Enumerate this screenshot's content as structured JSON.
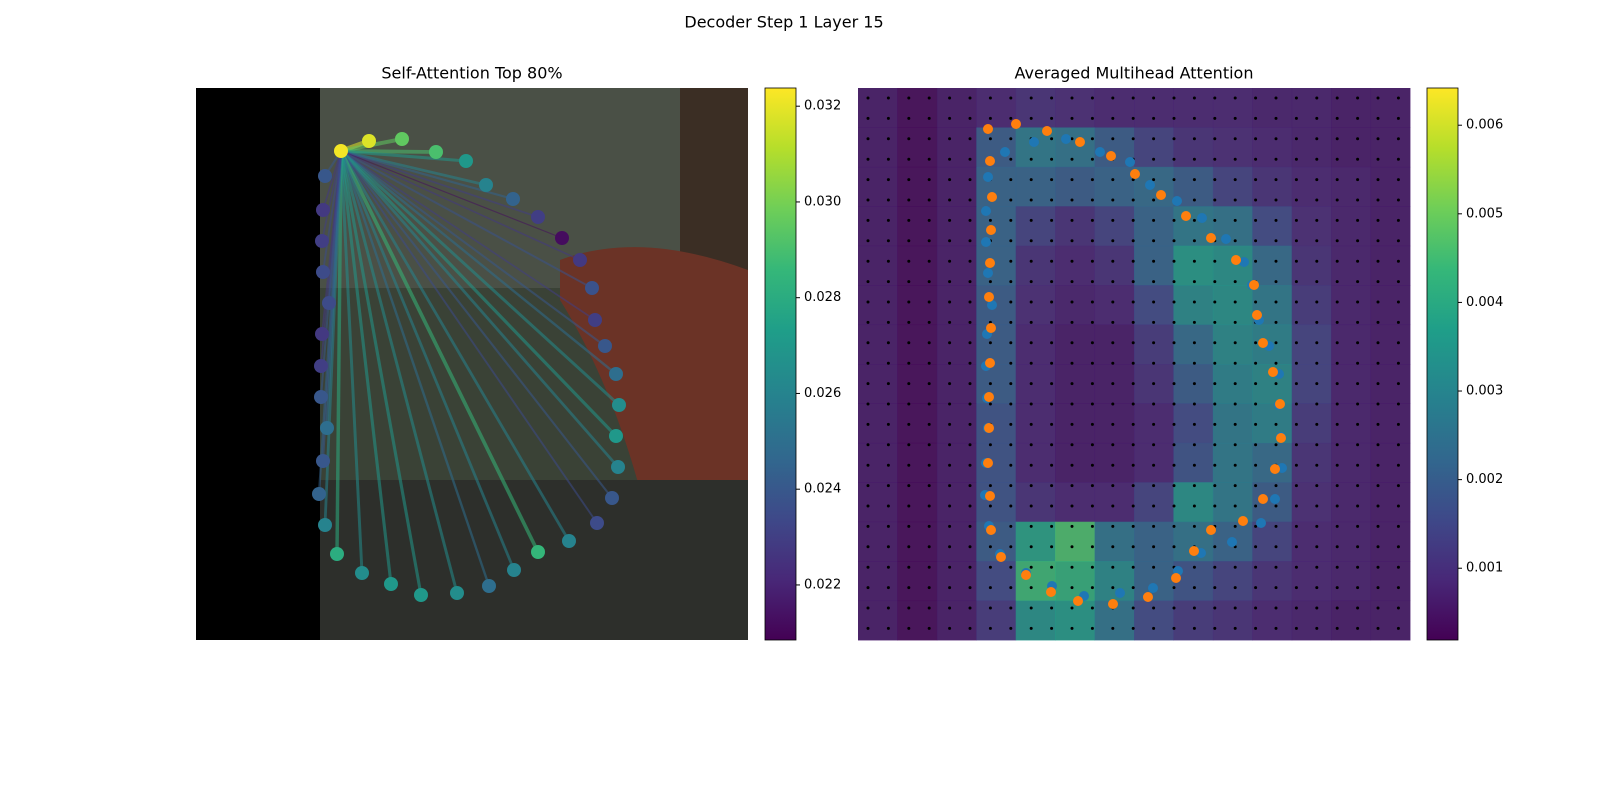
{
  "suptitle": "Decoder Step 1 Layer 15",
  "chart_data": [
    {
      "type": "scatter",
      "title": "Self-Attention Top 80%",
      "colormap": "viridis",
      "xlim": [
        0,
        552
      ],
      "ylim": [
        552,
        0
      ],
      "x": [
        145,
        173,
        206,
        240,
        270,
        290,
        317,
        342,
        366,
        384,
        396,
        399,
        409,
        420,
        423,
        420,
        422,
        416,
        401,
        373,
        342,
        318,
        293,
        261,
        225,
        195,
        166,
        141,
        129,
        123,
        127,
        131,
        125,
        125,
        126,
        133,
        127,
        126,
        127,
        129
      ],
      "y": [
        63,
        53,
        51,
        64,
        73,
        97,
        111,
        129,
        150,
        172,
        200,
        232,
        258,
        286,
        317,
        348,
        379,
        410,
        435,
        453,
        464,
        482,
        498,
        505,
        507,
        496,
        485,
        466,
        437,
        406,
        373,
        340,
        309,
        278,
        246,
        215,
        184,
        153,
        122,
        88
      ],
      "values": [
        0.0322,
        0.0318,
        0.0295,
        0.029,
        0.027,
        0.026,
        0.0245,
        0.023,
        0.0212,
        0.0228,
        0.0238,
        0.023,
        0.024,
        0.025,
        0.0265,
        0.027,
        0.026,
        0.024,
        0.0235,
        0.026,
        0.0285,
        0.026,
        0.025,
        0.0265,
        0.027,
        0.027,
        0.0265,
        0.028,
        0.026,
        0.0245,
        0.024,
        0.025,
        0.024,
        0.023,
        0.0228,
        0.0235,
        0.0235,
        0.023,
        0.0228,
        0.024
      ],
      "clim": [
        0.02085,
        0.03238
      ],
      "cticks": [
        0.022,
        0.024,
        0.026,
        0.028,
        {
          "value": 0.03,
          "label": "0.030"
        },
        0.032
      ]
    },
    {
      "type": "heatmap",
      "title": "Averaged Multihead Attention",
      "colormap": "viridis",
      "xlim": [
        0,
        552
      ],
      "ylim": [
        552,
        0
      ],
      "values": [
        [
          0.0006,
          0.0003,
          0.0006,
          0.0008,
          0.001,
          0.0009,
          0.0008,
          0.0008,
          0.0008,
          0.0008,
          0.0007,
          0.0007,
          0.0006,
          0.0006
        ],
        [
          0.0006,
          0.0003,
          0.0006,
          0.002,
          0.0028,
          0.0026,
          0.002,
          0.0014,
          0.001,
          0.0009,
          0.0008,
          0.0007,
          0.0006,
          0.0006
        ],
        [
          0.0006,
          0.0003,
          0.0006,
          0.0022,
          0.0022,
          0.002,
          0.0022,
          0.0024,
          0.002,
          0.0014,
          0.001,
          0.0008,
          0.0007,
          0.0006
        ],
        [
          0.0006,
          0.0003,
          0.0006,
          0.0022,
          0.0014,
          0.001,
          0.0014,
          0.0022,
          0.0028,
          0.0026,
          0.0016,
          0.0009,
          0.0007,
          0.0006
        ],
        [
          0.0006,
          0.0003,
          0.0006,
          0.0022,
          0.001,
          0.0008,
          0.001,
          0.0022,
          0.0036,
          0.0034,
          0.0024,
          0.001,
          0.0007,
          0.0006
        ],
        [
          0.0006,
          0.0003,
          0.0006,
          0.002,
          0.0009,
          0.0007,
          0.0008,
          0.0016,
          0.0032,
          0.0034,
          0.0028,
          0.0012,
          0.0007,
          0.0006
        ],
        [
          0.0006,
          0.0003,
          0.0006,
          0.002,
          0.0008,
          0.0006,
          0.0006,
          0.0012,
          0.0024,
          0.0032,
          0.003,
          0.0014,
          0.0007,
          0.0006
        ],
        [
          0.0006,
          0.0003,
          0.0006,
          0.002,
          0.0008,
          0.0006,
          0.0006,
          0.001,
          0.002,
          0.003,
          0.0032,
          0.0014,
          0.0007,
          0.0006
        ],
        [
          0.0006,
          0.0003,
          0.0006,
          0.0018,
          0.0008,
          0.0006,
          0.0006,
          0.0008,
          0.0016,
          0.0028,
          0.003,
          0.0012,
          0.0007,
          0.0006
        ],
        [
          0.0006,
          0.0003,
          0.0006,
          0.0018,
          0.0008,
          0.0006,
          0.0006,
          0.0008,
          0.0018,
          0.0028,
          0.0024,
          0.001,
          0.0007,
          0.0006
        ],
        [
          0.0006,
          0.0003,
          0.0006,
          0.0018,
          0.001,
          0.0008,
          0.0008,
          0.0014,
          0.0034,
          0.0028,
          0.002,
          0.0009,
          0.0007,
          0.0006
        ],
        [
          0.0006,
          0.0003,
          0.0006,
          0.002,
          0.0038,
          0.0046,
          0.0026,
          0.0022,
          0.0026,
          0.0022,
          0.0014,
          0.0008,
          0.0007,
          0.0006
        ],
        [
          0.0006,
          0.0003,
          0.0006,
          0.0016,
          0.0044,
          0.0042,
          0.0032,
          0.0022,
          0.0018,
          0.0014,
          0.001,
          0.0008,
          0.0007,
          0.0006
        ],
        [
          0.0006,
          0.0003,
          0.0006,
          0.0012,
          0.0034,
          0.0036,
          0.0026,
          0.0016,
          0.0012,
          0.001,
          0.0008,
          0.0007,
          0.0006,
          0.0006
        ]
      ],
      "series": [
        {
          "color": "#1f77b4",
          "x": [
            147,
            176,
            208,
            242,
            272,
            292,
            319,
            344,
            368,
            386,
            394,
            401,
            411,
            421,
            421,
            423,
            424,
            417,
            403,
            374,
            343,
            320,
            295,
            262,
            226,
            194,
            168,
            142,
            131,
            127,
            128,
            130,
            129,
            128,
            129,
            134,
            130,
            128,
            128,
            130
          ],
          "y": [
            64,
            54,
            51,
            64,
            74,
            97,
            113,
            130,
            151,
            174,
            197,
            232,
            258,
            286,
            317,
            349,
            380,
            411,
            435,
            454,
            465,
            483,
            500,
            505,
            508,
            498,
            485,
            466,
            438,
            407,
            375,
            340,
            310,
            278,
            246,
            217,
            185,
            154,
            123,
            89
          ]
        },
        {
          "color": "#ff7f0e",
          "x": [
            130,
            158,
            189,
            222,
            253,
            277,
            303,
            328,
            353,
            378,
            396,
            399,
            405,
            415,
            422,
            423,
            417,
            405,
            385,
            353,
            336,
            318,
            290,
            255,
            220,
            193,
            168,
            143,
            133,
            132,
            130,
            131,
            131,
            132,
            133,
            131,
            132,
            133,
            134,
            132
          ],
          "y": [
            41,
            36,
            43,
            54,
            68,
            86,
            107,
            128,
            150,
            172,
            197,
            227,
            255,
            284,
            316,
            350,
            381,
            411,
            433,
            442,
            463,
            490,
            509,
            516,
            513,
            504,
            487,
            469,
            442,
            408,
            375,
            340,
            309,
            275,
            240,
            209,
            175,
            142,
            109,
            73
          ]
        }
      ],
      "clim": [
        0.00019,
        0.00642
      ],
      "cticks": [
        0.001,
        0.002,
        0.003,
        0.004,
        0.005,
        0.006
      ]
    }
  ]
}
